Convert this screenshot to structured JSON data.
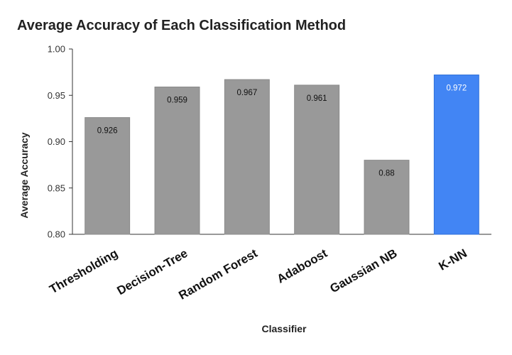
{
  "chart_data": {
    "type": "bar",
    "title": "Average Accuracy of Each Classification Method",
    "xlabel": "Classifier",
    "ylabel": "Average Accuracy",
    "categories": [
      "Thresholding",
      "Decision-Tree",
      "Random Forest",
      "Adaboost",
      "Gaussian NB",
      "K-NN"
    ],
    "values": [
      0.926,
      0.959,
      0.967,
      0.961,
      0.88,
      0.972
    ],
    "data_labels": [
      "0.926",
      "0.959",
      "0.967",
      "0.961",
      "0.88",
      "0.972"
    ],
    "ylim": [
      0.8,
      1.0
    ],
    "yticks": [
      0.8,
      0.85,
      0.9,
      0.95,
      1.0
    ],
    "ytick_labels": [
      "0.80",
      "0.85",
      "0.90",
      "0.95",
      "1.00"
    ],
    "grid": false,
    "legend": "none",
    "colors": {
      "default_bar": "#999999",
      "highlight_bar": "#4285f4",
      "default_label": "#111111",
      "highlight_label": "#ffffff"
    },
    "highlight_category": "K-NN"
  }
}
